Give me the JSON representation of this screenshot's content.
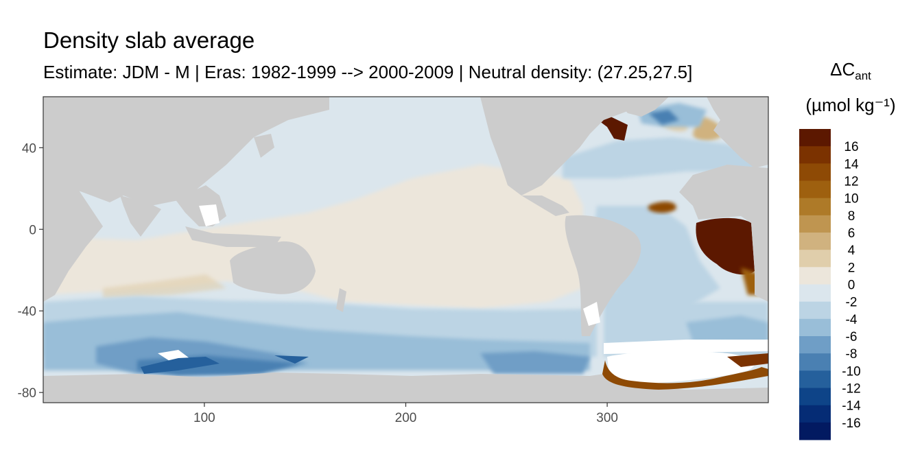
{
  "title": "Density slab average",
  "subtitle": "Estimate: JDM - M | Eras: 1982-1999 --> 2000-2009 | Neutral density: (27.25,27.5]",
  "legend": {
    "title_line1_main": "ΔC",
    "title_line1_sub": "ant",
    "title_line2": "(µmol kg⁻¹)",
    "labels": [
      "16",
      "14",
      "12",
      "10",
      "8",
      "6",
      "4",
      "2",
      "0",
      "-2",
      "-4",
      "-6",
      "-8",
      "-10",
      "-12",
      "-14",
      "-16"
    ],
    "colors": [
      "#5c1800",
      "#7b3200",
      "#8e4a05",
      "#9e600f",
      "#ae7a28",
      "#bf9550",
      "#d0b27f",
      "#e0ceab",
      "#ece6db",
      "#dbe6ed",
      "#bcd4e4",
      "#99bed8",
      "#6f9ec6",
      "#4a80b2",
      "#25609c",
      "#0e4488",
      "#052c75",
      "#021a61"
    ],
    "land_color": "#cccccc",
    "ice_color": "#ffffff"
  },
  "chart_data": {
    "type": "heatmap",
    "title": "Density slab average",
    "xlabel": "",
    "ylabel": "",
    "xlim": [
      20,
      380
    ],
    "ylim": [
      -85,
      65
    ],
    "x_ticks": [
      100,
      200,
      300
    ],
    "y_ticks": [
      40,
      0,
      -40,
      -80
    ],
    "x_tick_labels": [
      "100",
      "200",
      "300"
    ],
    "y_tick_labels": [
      "40",
      "0",
      "-40",
      "-80"
    ],
    "grid": false,
    "legend_position": "right",
    "variable": "ΔCant",
    "units": "µmol kg⁻¹",
    "range": [
      -16,
      16
    ]
  }
}
